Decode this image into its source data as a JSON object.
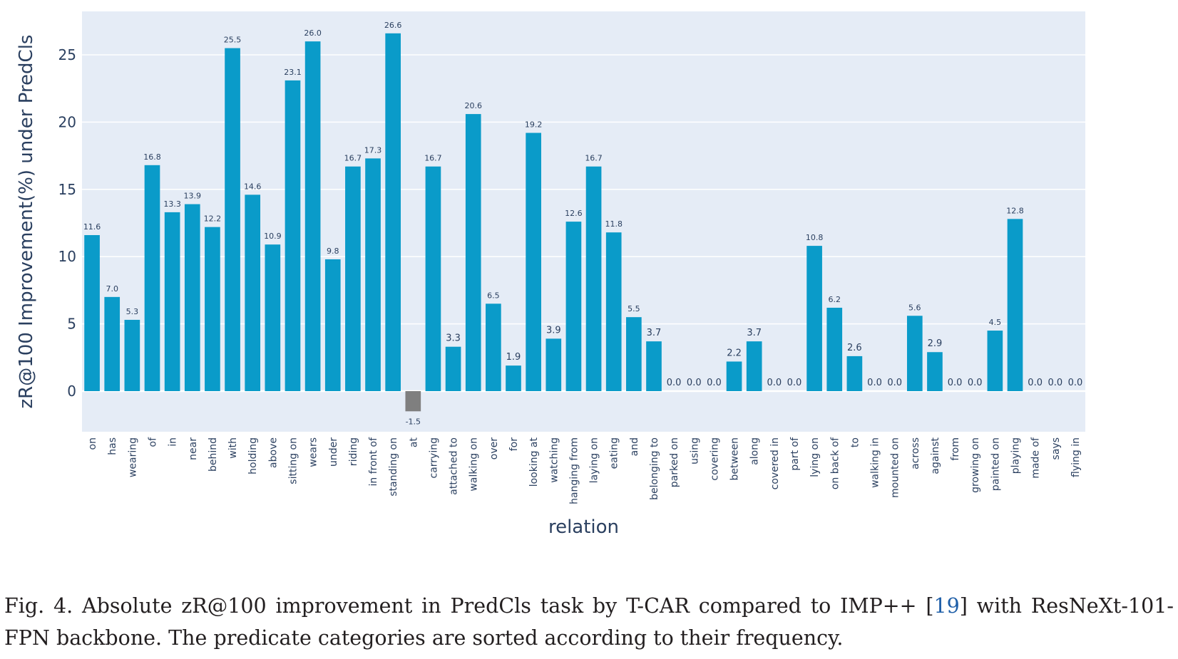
{
  "chart_data": {
    "type": "bar",
    "xlabel": "relation",
    "ylabel": "zR@100 Improvement(%) under PredCls",
    "ylim": [
      -3,
      28
    ],
    "yticks": [
      0,
      5,
      10,
      15,
      20,
      25
    ],
    "grid": true,
    "bar_color": "#0a9bc9",
    "negative_color": "#7f7f7f",
    "plot_bg": "#e5ecf6",
    "categories": [
      "on",
      "has",
      "wearing",
      "of",
      "in",
      "near",
      "behind",
      "with",
      "holding",
      "above",
      "sitting on",
      "wears",
      "under",
      "riding",
      "in front of",
      "standing on",
      "at",
      "carrying",
      "attached to",
      "walking on",
      "over",
      "for",
      "looking at",
      "watching",
      "hanging from",
      "laying on",
      "eating",
      "and",
      "belonging to",
      "parked on",
      "using",
      "covering",
      "between",
      "along",
      "covered in",
      "part of",
      "lying on",
      "on back of",
      "to",
      "walking in",
      "mounted on",
      "across",
      "against",
      "from",
      "growing on",
      "painted on",
      "playing",
      "made of",
      "says",
      "flying in"
    ],
    "values": [
      11.6,
      7.0,
      5.3,
      16.8,
      13.3,
      13.9,
      12.2,
      25.5,
      14.6,
      10.9,
      23.1,
      26.0,
      9.8,
      16.7,
      17.3,
      26.6,
      -1.5,
      16.7,
      3.3,
      20.6,
      6.5,
      1.9,
      19.2,
      3.9,
      12.6,
      16.7,
      11.8,
      5.5,
      3.7,
      0.0,
      0.0,
      0.0,
      2.2,
      3.7,
      0.0,
      0.0,
      10.8,
      6.2,
      2.6,
      0.0,
      0.0,
      5.6,
      2.9,
      0.0,
      0.0,
      4.5,
      12.8,
      0.0,
      0.0,
      0.0
    ],
    "labels": [
      "11.6",
      "7.0",
      "5.3",
      "16.8",
      "13.3",
      "13.9",
      "12.2",
      "25.5",
      "14.6",
      "10.9",
      "23.1",
      "26.0",
      "9.8",
      "16.7",
      "17.3",
      "26.6",
      "-1.5",
      "16.7",
      "3.3",
      "20.6",
      "6.5",
      "1.9",
      "19.2",
      "3.9",
      "12.6",
      "16.7",
      "11.8",
      "5.5",
      "3.7",
      "0.0",
      "0.0",
      "0.0",
      "2.2",
      "3.7",
      "0.0",
      "0.0",
      "10.8",
      "6.2",
      "2.6",
      "0.0",
      "0.0",
      "5.6",
      "2.9",
      "0.0",
      "0.0",
      "4.5",
      "12.8",
      "0.0",
      "0.0",
      "0.0"
    ]
  },
  "caption": {
    "prefix": "Fig. 4.  Absolute zR@100 improvement in PredCls task by T-CAR compared to IMP++ [",
    "ref": "19",
    "suffix": "] with ResNeXt-101-FPN backbone. The predicate categories are sorted according to their frequency."
  }
}
